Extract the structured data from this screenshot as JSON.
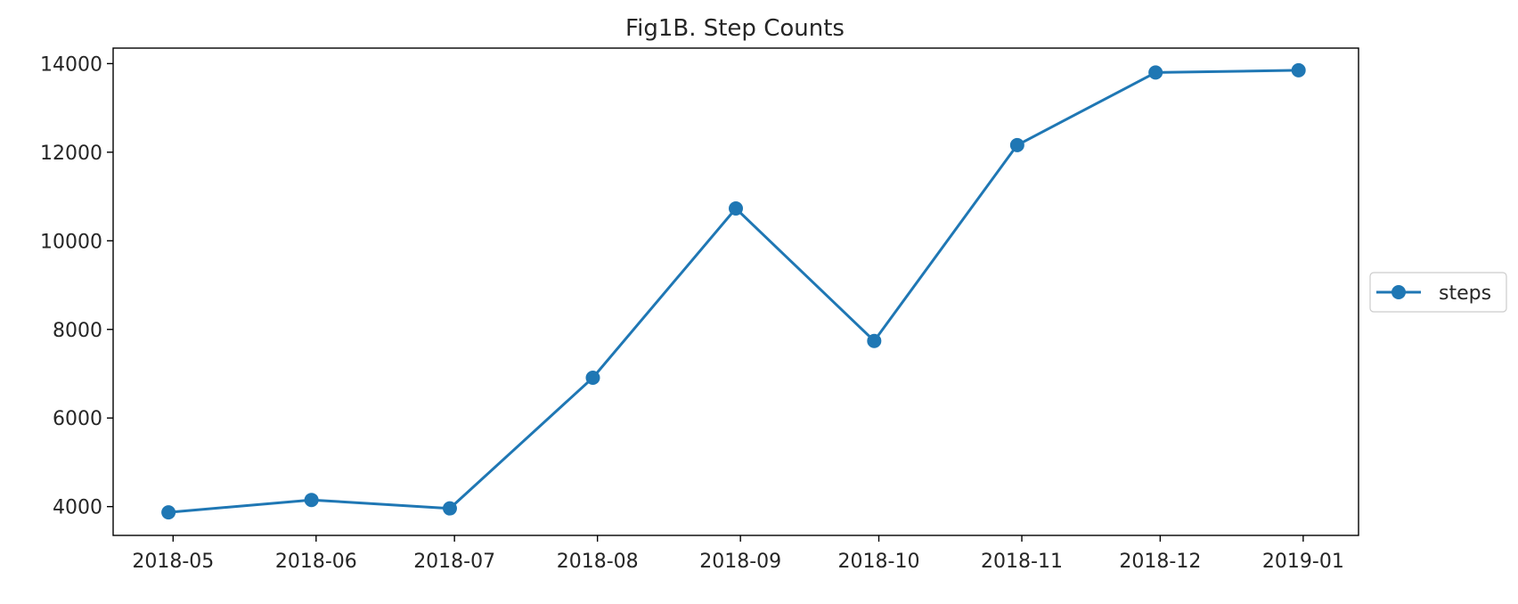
{
  "chart_data": {
    "type": "line",
    "title": "Fig1B. Step Counts",
    "xlabel": "",
    "ylabel": "",
    "x": [
      "2018-05-01",
      "2018-06-01",
      "2018-07-01",
      "2018-08-01",
      "2018-09-01",
      "2018-10-01",
      "2018-11-01",
      "2018-12-01",
      "2019-01-01"
    ],
    "x_tick_labels": [
      "2018-05",
      "2018-06",
      "2018-07",
      "2018-08",
      "2018-09",
      "2018-10",
      "2018-11",
      "2018-12",
      "2019-01"
    ],
    "y_ticks": [
      4000,
      6000,
      8000,
      10000,
      12000,
      14000
    ],
    "ylim": [
      3350,
      14350
    ],
    "grid": false,
    "legend_position": "center-right, outside the plot",
    "series": [
      {
        "name": "steps",
        "color": "#1f77b4",
        "marker": "circle",
        "points": [
          {
            "x": "2018-04-30",
            "y": 3870
          },
          {
            "x": "2018-05-31",
            "y": 4150
          },
          {
            "x": "2018-06-30",
            "y": 3960
          },
          {
            "x": "2018-07-31",
            "y": 6910
          },
          {
            "x": "2018-08-31",
            "y": 10730
          },
          {
            "x": "2018-09-30",
            "y": 7740
          },
          {
            "x": "2018-10-31",
            "y": 12160
          },
          {
            "x": "2018-11-30",
            "y": 13800
          },
          {
            "x": "2018-12-31",
            "y": 13850
          }
        ]
      }
    ]
  }
}
